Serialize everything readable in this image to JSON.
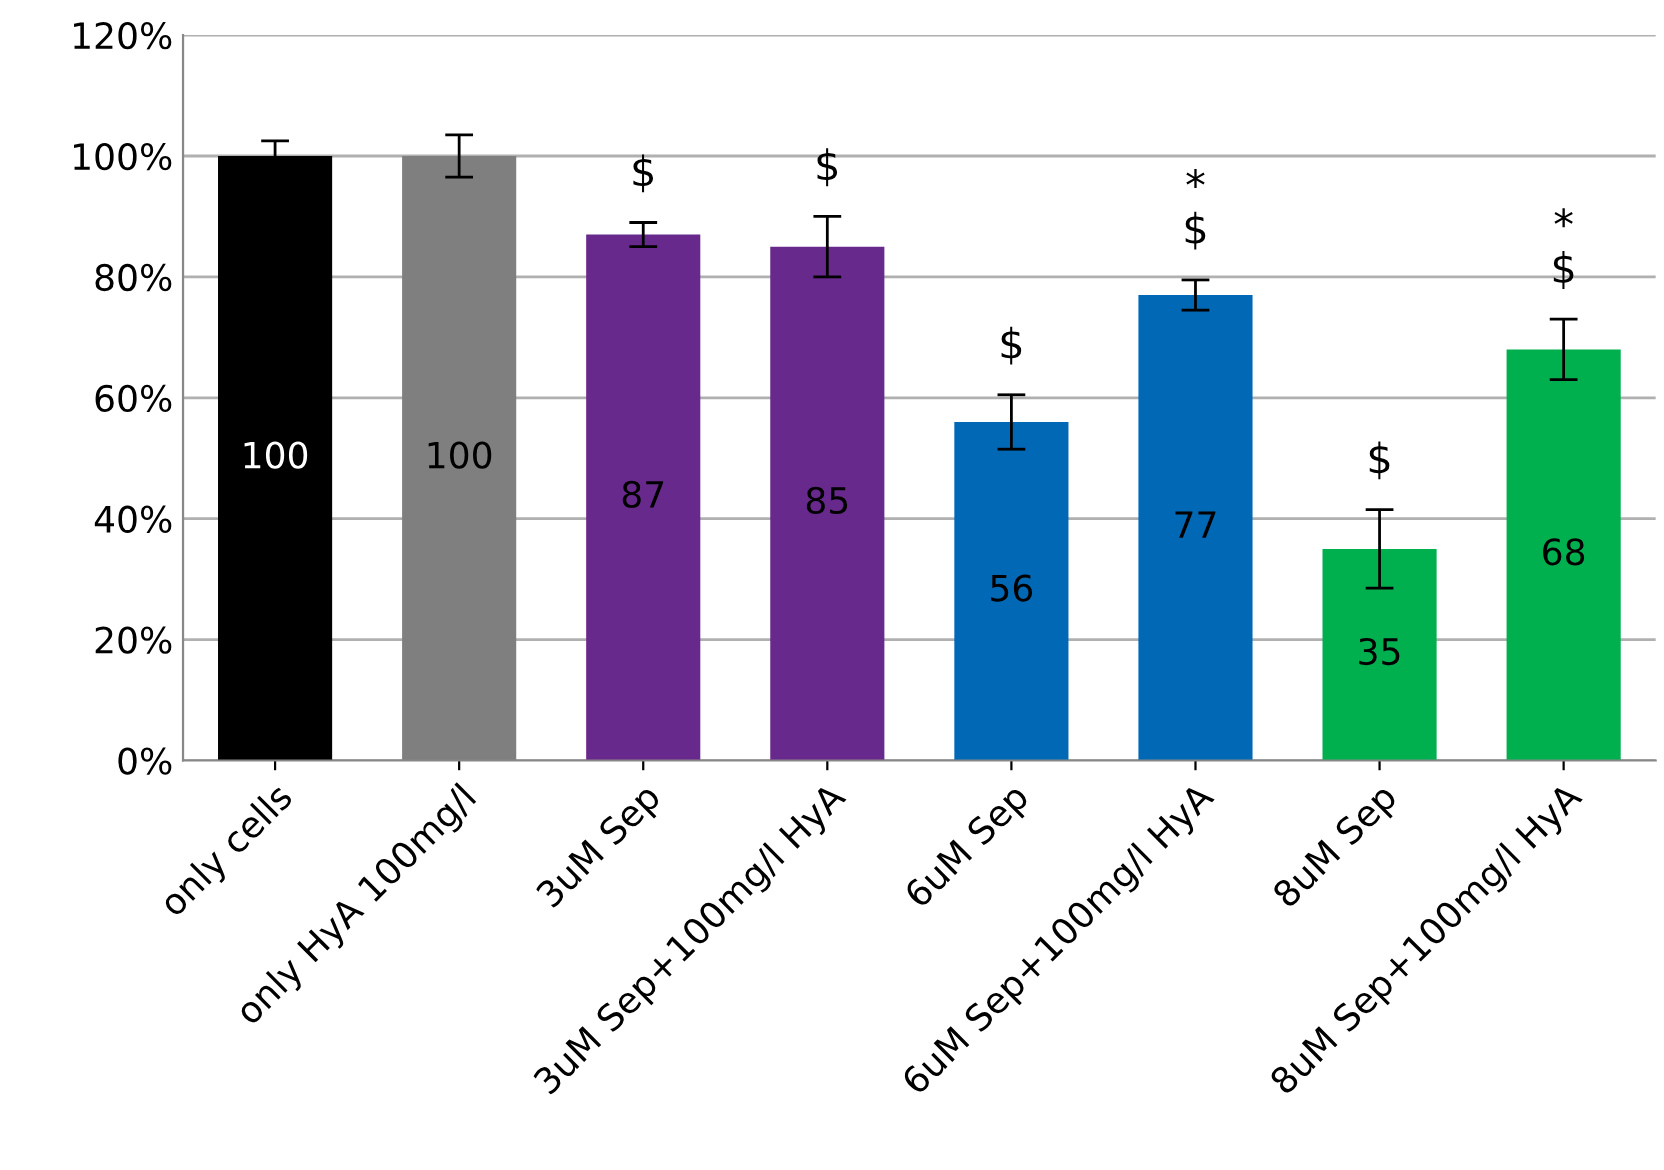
{
  "chart_data": {
    "type": "bar",
    "categories": [
      "only cells",
      "only HyA 100mg/l",
      "3uM Sep",
      "3uM Sep+100mg/l HyA",
      "6uM Sep",
      "6uM Sep+100mg/l HyA",
      "8uM Sep",
      "8uM Sep+100mg/l HyA"
    ],
    "values": [
      100,
      100,
      87,
      85,
      56,
      77,
      35,
      68
    ],
    "colors": [
      "#000000",
      "#7f7f7f",
      "#68298c",
      "#68298c",
      "#0068b5",
      "#0068b5",
      "#00b04f",
      "#00b04f"
    ],
    "errors": [
      2.5,
      3.5,
      2,
      5,
      4.5,
      2.5,
      6.5,
      5
    ],
    "data_labels": true,
    "ylim": [
      0,
      120
    ],
    "yticks": [
      {
        "value": 0,
        "label": "0%"
      },
      {
        "value": 20,
        "label": "20%"
      },
      {
        "value": 40,
        "label": "40%"
      },
      {
        "value": 60,
        "label": "60%"
      },
      {
        "value": 80,
        "label": "80%"
      },
      {
        "value": 100,
        "label": "100%"
      },
      {
        "value": 120,
        "label": "120%"
      }
    ],
    "grid": "y",
    "annotations": [
      {
        "text": "$",
        "x": "3uM Sep",
        "y": 87
      },
      {
        "text": "$",
        "x": "3uM Sep+100mg/l HyA",
        "y": 85
      },
      {
        "text": "$",
        "x": "6uM Sep",
        "y": 56
      },
      {
        "text": "*\n$",
        "x": "6uM Sep+100mg/l HyA",
        "y": 77
      },
      {
        "text": "$",
        "x": "8uM Sep",
        "y": 35
      },
      {
        "text": "*\n$",
        "x": "8uM Sep+100mg/l HyA",
        "y": 68
      }
    ]
  }
}
